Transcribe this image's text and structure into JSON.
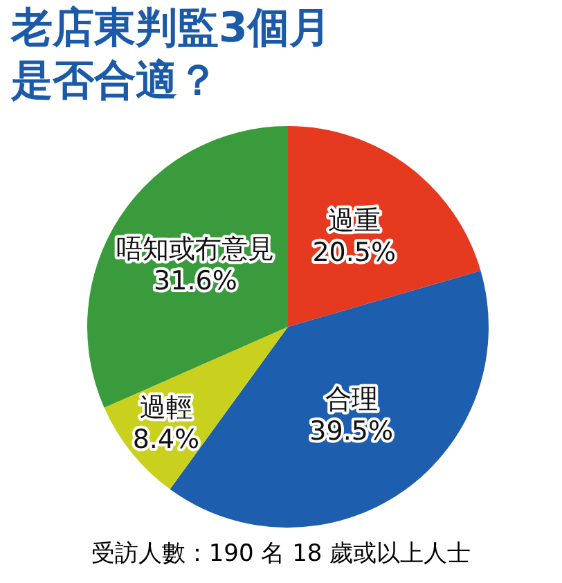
{
  "chart_data": {
    "type": "pie",
    "title": "老店東判監3個月是否合適？",
    "categories": [
      "過重",
      "合理",
      "過輕",
      "唔知或冇意見"
    ],
    "values": [
      20.5,
      39.5,
      8.4,
      31.6
    ],
    "colors": [
      "#e53a1f",
      "#1e5eae",
      "#c9d11e",
      "#3a9b3c"
    ],
    "value_labels": [
      "20.5%",
      "39.5%",
      "8.4%",
      "31.6%"
    ],
    "legend": false,
    "annotations": [
      "受訪人數：190 名 18 歲或以上人士"
    ]
  }
}
